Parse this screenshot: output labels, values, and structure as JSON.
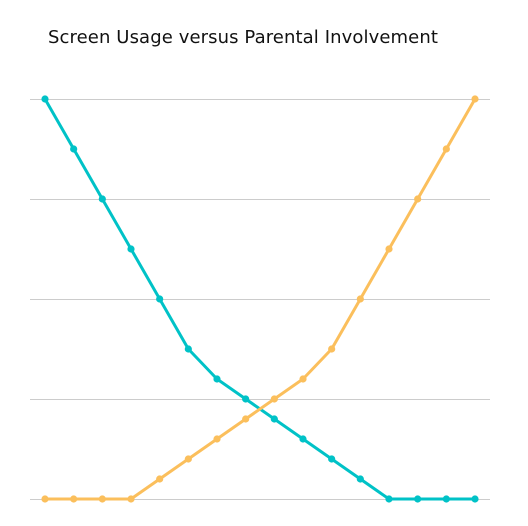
{
  "chart_data": {
    "type": "line",
    "title": "Screen Usage versus Parental Involvement",
    "xlabel": "",
    "ylabel": "",
    "x": [
      1,
      2,
      3,
      4,
      5,
      6,
      7,
      8,
      9,
      10,
      11,
      12,
      13,
      14,
      15,
      16
    ],
    "ylim": [
      0,
      100
    ],
    "gridlines": [
      0,
      25,
      50,
      75,
      100
    ],
    "grid": true,
    "legend": "none",
    "series": [
      {
        "color": "#00c2c7",
        "values": [
          100,
          87.5,
          75,
          62.5,
          50,
          37.5,
          30,
          25,
          20,
          15,
          10,
          5,
          0,
          0,
          0,
          0
        ]
      },
      {
        "color": "#fbbf5c",
        "values": [
          0,
          0,
          0,
          0,
          5,
          10,
          15,
          20,
          25,
          30,
          37.5,
          50,
          62.5,
          75,
          87.5,
          100
        ]
      }
    ]
  }
}
